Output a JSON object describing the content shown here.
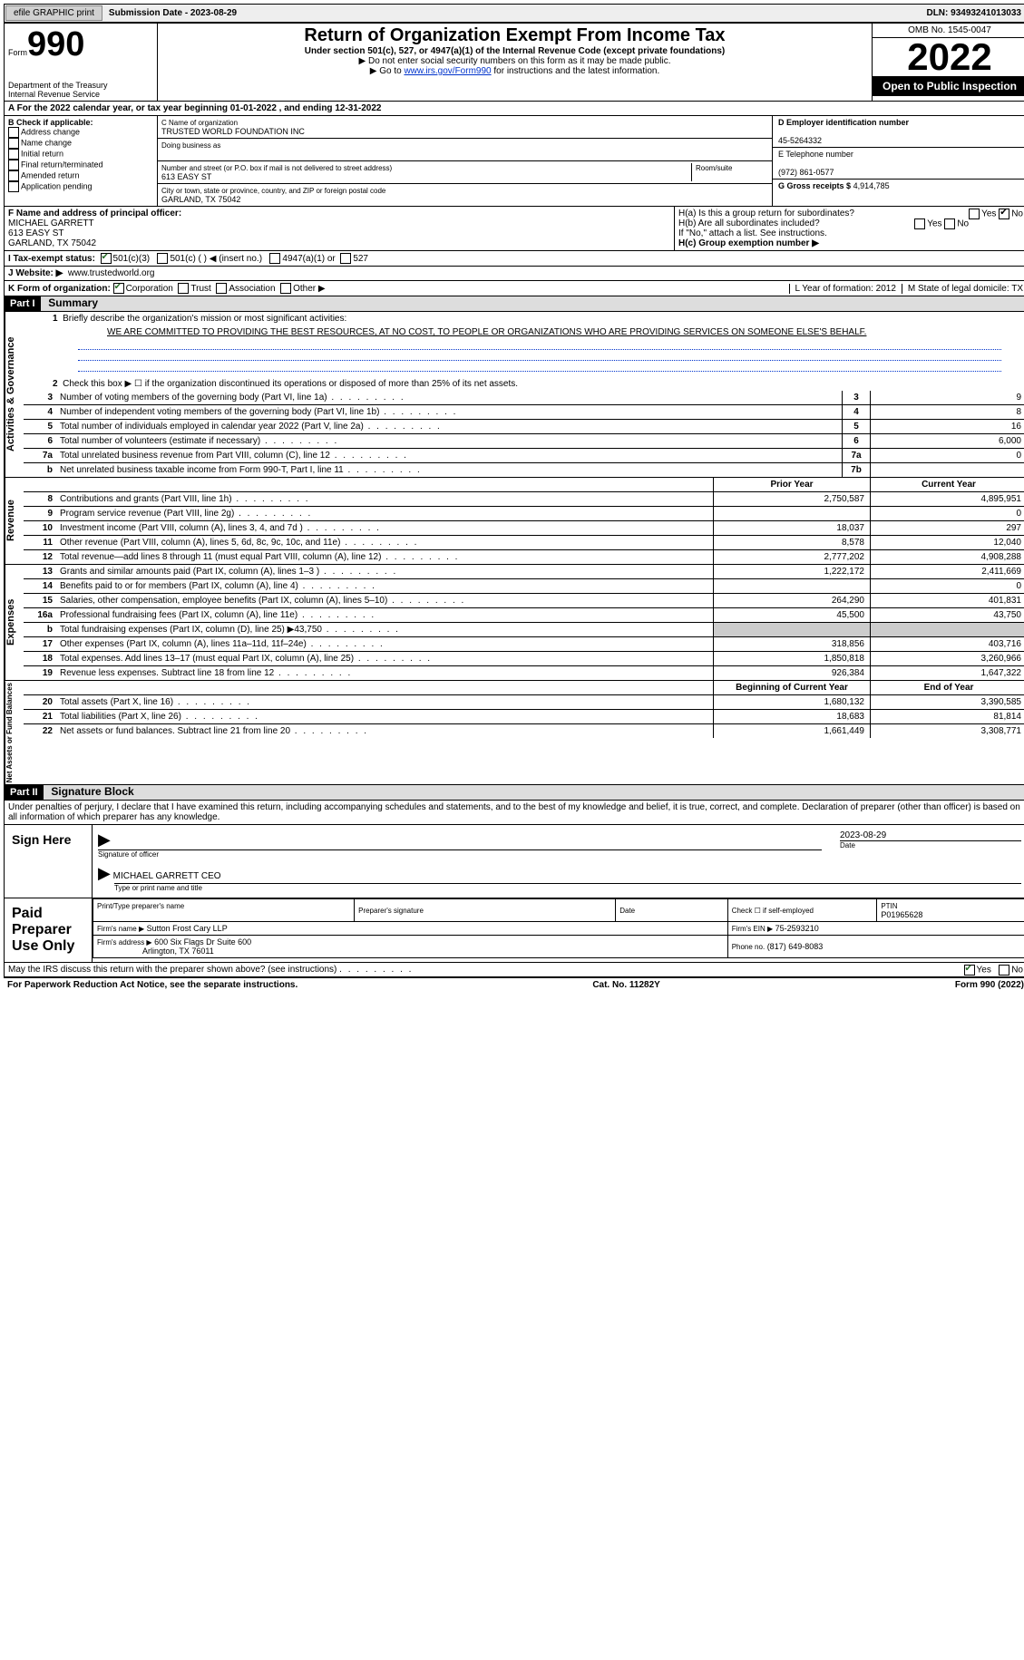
{
  "header": {
    "efile_print": "efile GRAPHIC print",
    "submission_label": "Submission Date - 2023-08-29",
    "dln": "DLN: 93493241013033"
  },
  "top": {
    "form_word": "Form",
    "form_num": "990",
    "dept": "Department of the Treasury",
    "irs": "Internal Revenue Service",
    "title": "Return of Organization Exempt From Income Tax",
    "subtitle": "Under section 501(c), 527, or 4947(a)(1) of the Internal Revenue Code (except private foundations)",
    "warn": "▶ Do not enter social security numbers on this form as it may be made public.",
    "goto_pre": "▶ Go to ",
    "goto_link": "www.irs.gov/Form990",
    "goto_post": " for instructions and the latest information.",
    "omb": "OMB No. 1545-0047",
    "year": "2022",
    "inspect": "Open to Public Inspection"
  },
  "sectionA": "A For the 2022 calendar year, or tax year beginning 01-01-2022     , and ending 12-31-2022",
  "B": {
    "label": "B Check if applicable:",
    "opts": [
      "Address change",
      "Name change",
      "Initial return",
      "Final return/terminated",
      "Amended return",
      "Application pending"
    ]
  },
  "C": {
    "name_label": "C Name of organization",
    "name": "TRUSTED WORLD FOUNDATION INC",
    "dba_label": "Doing business as",
    "addr_label": "Number and street (or P.O. box if mail is not delivered to street address)",
    "room_label": "Room/suite",
    "street": "613 EASY ST",
    "city_label": "City or town, state or province, country, and ZIP or foreign postal code",
    "city": "GARLAND, TX  75042"
  },
  "D": {
    "label": "D Employer identification number",
    "value": "45-5264332"
  },
  "E": {
    "label": "E Telephone number",
    "value": "(972) 861-0577"
  },
  "G": {
    "label": "G Gross receipts $",
    "value": "4,914,785"
  },
  "F": {
    "label": "F  Name and address of principal officer:",
    "name": "MICHAEL GARRETT",
    "street": "613 EASY ST",
    "city": "GARLAND, TX  75042"
  },
  "H": {
    "a": "H(a)  Is this a group return for subordinates?",
    "no_checked": true,
    "b": "H(b)  Are all subordinates included?",
    "b_note": "If \"No,\" attach a list. See instructions.",
    "c": "H(c)  Group exemption number ▶"
  },
  "I": {
    "label": "I   Tax-exempt status:",
    "c3": "501(c)(3)",
    "cn": "501(c) (  ) ◀ (insert no.)",
    "a1": "4947(a)(1) or",
    "n527": "527"
  },
  "J": {
    "label": "J  Website: ▶",
    "value": "www.trustedworld.org"
  },
  "K": {
    "label": "K Form of organization:",
    "opts": [
      "Corporation",
      "Trust",
      "Association",
      "Other ▶"
    ],
    "L": "L Year of formation: 2012",
    "M": "M State of legal domicile: TX"
  },
  "part1": {
    "tag": "Part I",
    "title": "Summary"
  },
  "summary": {
    "l1": "Briefly describe the organization's mission or most significant activities:",
    "mission": "WE ARE COMMITTED TO PROVIDING THE BEST RESOURCES, AT NO COST, TO PEOPLE OR ORGANIZATIONS WHO ARE PROVIDING SERVICES ON SOMEONE ELSE'S BEHALF.",
    "l2": "Check this box ▶ ☐ if the organization discontinued its operations or disposed of more than 25% of its net assets.",
    "rows_ag": [
      {
        "n": "3",
        "d": "Number of voting members of the governing body (Part VI, line 1a)",
        "box": "3",
        "v": "9"
      },
      {
        "n": "4",
        "d": "Number of independent voting members of the governing body (Part VI, line 1b)",
        "box": "4",
        "v": "8"
      },
      {
        "n": "5",
        "d": "Total number of individuals employed in calendar year 2022 (Part V, line 2a)",
        "box": "5",
        "v": "16"
      },
      {
        "n": "6",
        "d": "Total number of volunteers (estimate if necessary)",
        "box": "6",
        "v": "6,000"
      },
      {
        "n": "7a",
        "d": "Total unrelated business revenue from Part VIII, column (C), line 12",
        "box": "7a",
        "v": "0"
      },
      {
        "n": "b",
        "d": "Net unrelated business taxable income from Form 990-T, Part I, line 11",
        "box": "7b",
        "v": ""
      }
    ],
    "prior_h": "Prior Year",
    "curr_h": "Current Year",
    "rev": [
      {
        "n": "8",
        "d": "Contributions and grants (Part VIII, line 1h)",
        "p": "2,750,587",
        "c": "4,895,951"
      },
      {
        "n": "9",
        "d": "Program service revenue (Part VIII, line 2g)",
        "p": "",
        "c": "0"
      },
      {
        "n": "10",
        "d": "Investment income (Part VIII, column (A), lines 3, 4, and 7d )",
        "p": "18,037",
        "c": "297"
      },
      {
        "n": "11",
        "d": "Other revenue (Part VIII, column (A), lines 5, 6d, 8c, 9c, 10c, and 11e)",
        "p": "8,578",
        "c": "12,040"
      },
      {
        "n": "12",
        "d": "Total revenue—add lines 8 through 11 (must equal Part VIII, column (A), line 12)",
        "p": "2,777,202",
        "c": "4,908,288"
      }
    ],
    "exp": [
      {
        "n": "13",
        "d": "Grants and similar amounts paid (Part IX, column (A), lines 1–3 )",
        "p": "1,222,172",
        "c": "2,411,669"
      },
      {
        "n": "14",
        "d": "Benefits paid to or for members (Part IX, column (A), line 4)",
        "p": "",
        "c": "0"
      },
      {
        "n": "15",
        "d": "Salaries, other compensation, employee benefits (Part IX, column (A), lines 5–10)",
        "p": "264,290",
        "c": "401,831"
      },
      {
        "n": "16a",
        "d": "Professional fundraising fees (Part IX, column (A), line 11e)",
        "p": "45,500",
        "c": "43,750"
      },
      {
        "n": "b",
        "d": "Total fundraising expenses (Part IX, column (D), line 25) ▶43,750",
        "p": "SHADE",
        "c": "SHADE"
      },
      {
        "n": "17",
        "d": "Other expenses (Part IX, column (A), lines 11a–11d, 11f–24e)",
        "p": "318,856",
        "c": "403,716"
      },
      {
        "n": "18",
        "d": "Total expenses. Add lines 13–17 (must equal Part IX, column (A), line 25)",
        "p": "1,850,818",
        "c": "3,260,966"
      },
      {
        "n": "19",
        "d": "Revenue less expenses. Subtract line 18 from line 12",
        "p": "926,384",
        "c": "1,647,322"
      }
    ],
    "na_h1": "Beginning of Current Year",
    "na_h2": "End of Year",
    "na": [
      {
        "n": "20",
        "d": "Total assets (Part X, line 16)",
        "p": "1,680,132",
        "c": "3,390,585"
      },
      {
        "n": "21",
        "d": "Total liabilities (Part X, line 26)",
        "p": "18,683",
        "c": "81,814"
      },
      {
        "n": "22",
        "d": "Net assets or fund balances. Subtract line 21 from line 20",
        "p": "1,661,449",
        "c": "3,308,771"
      }
    ]
  },
  "vtabs": {
    "ag": "Activities & Governance",
    "rev": "Revenue",
    "exp": "Expenses",
    "na": "Net Assets or Fund Balances"
  },
  "part2": {
    "tag": "Part II",
    "title": "Signature Block",
    "perjury": "Under penalties of perjury, I declare that I have examined this return, including accompanying schedules and statements, and to the best of my knowledge and belief, it is true, correct, and complete. Declaration of preparer (other than officer) is based on all information of which preparer has any knowledge.",
    "sign_here": "Sign Here",
    "sig_officer": "Signature of officer",
    "date": "Date",
    "sig_date": "2023-08-29",
    "name_title": "MICHAEL GARRETT  CEO",
    "type_name": "Type or print name and title",
    "paid": "Paid Preparer Use Only",
    "prep_name_h": "Print/Type preparer's name",
    "prep_sig_h": "Preparer's signature",
    "check_self": "Check ☐ if self-employed",
    "ptin_h": "PTIN",
    "ptin": "P01965628",
    "firm_name_h": "Firm's name   ▶",
    "firm_name": "Sutton Frost Cary LLP",
    "firm_ein_h": "Firm's EIN ▶",
    "firm_ein": "75-2593210",
    "firm_addr_h": "Firm's address ▶",
    "firm_addr1": "600 Six Flags Dr Suite 600",
    "firm_addr2": "Arlington, TX  76011",
    "phone_h": "Phone no.",
    "phone": "(817) 649-8083",
    "discuss": "May the IRS discuss this return with the preparer shown above? (see instructions)"
  },
  "footer": {
    "pra": "For Paperwork Reduction Act Notice, see the separate instructions.",
    "cat": "Cat. No. 11282Y",
    "form": "Form 990 (2022)"
  }
}
